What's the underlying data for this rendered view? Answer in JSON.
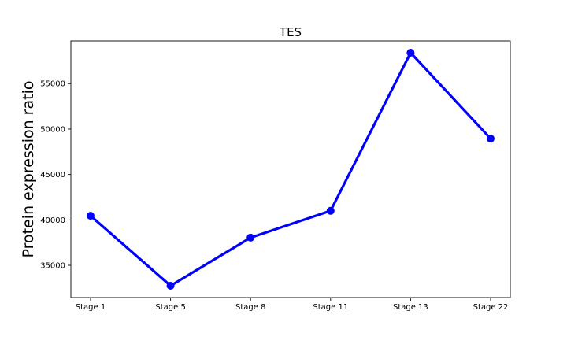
{
  "chart_data": {
    "type": "line",
    "title": "TES",
    "xlabel": "",
    "ylabel": "Protein expression ratio",
    "categories": [
      "Stage 1",
      "Stage 5",
      "Stage 8",
      "Stage 11",
      "Stage 13",
      "Stage 22"
    ],
    "series": [
      {
        "values": [
          40450,
          32750,
          38050,
          41000,
          58400,
          48950
        ],
        "color": "#0000ff"
      }
    ],
    "yticks": [
      35000,
      40000,
      45000,
      50000,
      55000
    ],
    "ytick_labels": [
      "35000",
      "40000",
      "45000",
      "50000",
      "55000"
    ],
    "ylim": [
      31450,
      59700
    ],
    "grid": false,
    "legend": "none"
  }
}
